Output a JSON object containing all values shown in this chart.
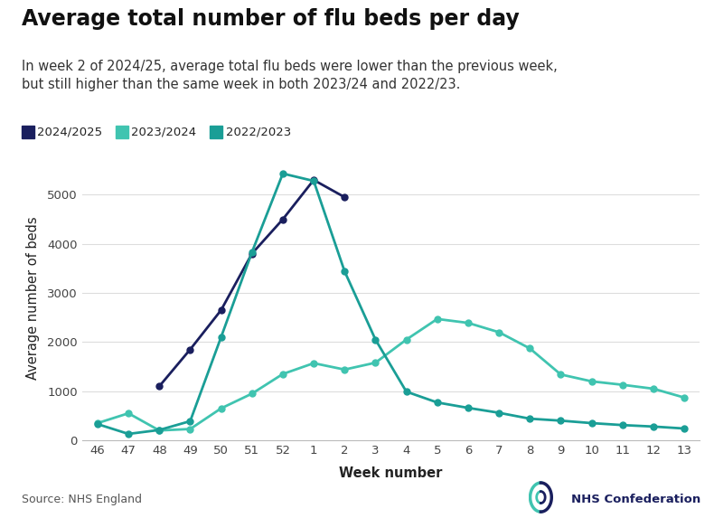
{
  "title": "Average total number of flu beds per day",
  "subtitle": "In week 2 of 2024/25, average total flu beds were lower than the previous week,\nbut still higher than the same week in both 2023/24 and 2022/23.",
  "xlabel": "Week number",
  "ylabel": "Average number of beds",
  "source": "Source: NHS England",
  "background_color": "#ffffff",
  "series": [
    {
      "label": "2024/2025",
      "color": "#1a1f5e",
      "weeks": [
        48,
        49,
        50,
        51,
        52,
        1,
        2
      ],
      "values": [
        1100,
        1850,
        2650,
        3800,
        4500,
        5300,
        4950
      ]
    },
    {
      "label": "2023/2024",
      "color": "#40c4b0",
      "weeks": [
        46,
        47,
        48,
        49,
        50,
        51,
        52,
        1,
        2,
        3,
        4,
        5,
        6,
        7,
        8,
        9,
        10,
        11,
        12,
        13
      ],
      "values": [
        350,
        550,
        200,
        230,
        650,
        950,
        1350,
        1570,
        1440,
        1580,
        2050,
        2470,
        2390,
        2200,
        1870,
        1340,
        1200,
        1130,
        1050,
        870
      ]
    },
    {
      "label": "2022/2023",
      "color": "#1a9e96",
      "weeks": [
        46,
        47,
        48,
        49,
        50,
        51,
        52,
        1,
        2,
        3,
        4,
        5,
        6,
        7,
        8,
        9,
        10,
        11,
        12,
        13
      ],
      "values": [
        330,
        130,
        210,
        390,
        2100,
        3830,
        5430,
        5280,
        3440,
        2050,
        990,
        770,
        660,
        560,
        440,
        400,
        350,
        310,
        280,
        240
      ]
    }
  ],
  "week_order": [
    46,
    47,
    48,
    49,
    50,
    51,
    52,
    1,
    2,
    3,
    4,
    5,
    6,
    7,
    8,
    9,
    10,
    11,
    12,
    13
  ],
  "week_labels": [
    "46",
    "47",
    "48",
    "49",
    "50",
    "51",
    "52",
    "1",
    "2",
    "3",
    "4",
    "5",
    "6",
    "7",
    "8",
    "9",
    "10",
    "11",
    "12",
    "13"
  ],
  "ylim": [
    0,
    5800
  ],
  "yticks": [
    0,
    1000,
    2000,
    3000,
    4000,
    5000
  ],
  "grid_color": "#dddddd",
  "title_fontsize": 17,
  "subtitle_fontsize": 10.5,
  "axis_label_fontsize": 10.5,
  "tick_fontsize": 9.5,
  "legend_fontsize": 9.5,
  "marker_size": 5,
  "line_width": 2.0,
  "nhs_color": "#1a1f5e",
  "nhs_teal": "#40c4b0"
}
